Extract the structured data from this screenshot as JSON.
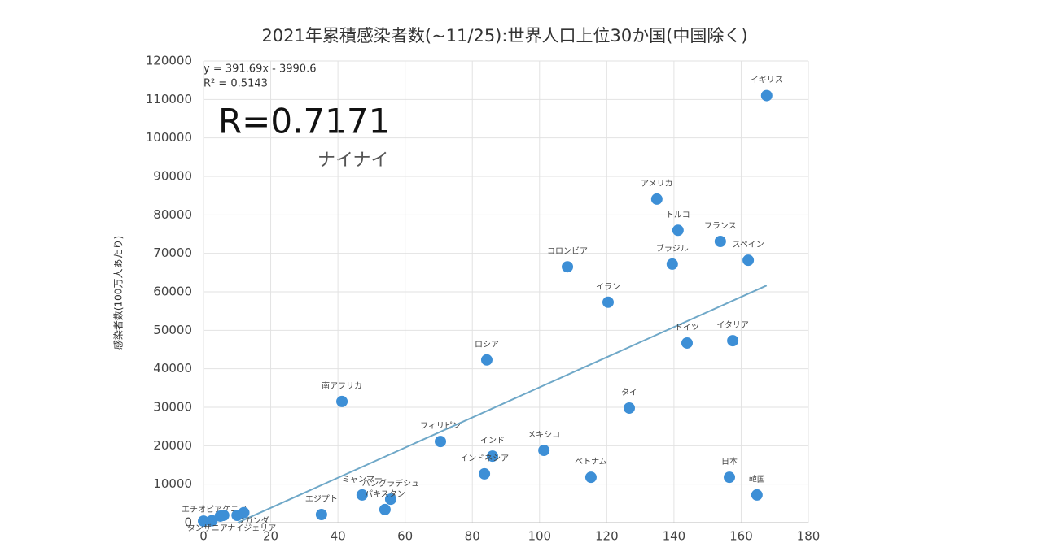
{
  "chart_data": {
    "type": "scatter",
    "title": "2021年累積感染者数(~11/25):世界人口上位30か国(中国除く)",
    "y_label": "感染者数(100万人あたり)",
    "annotations": [
      "R=0.7171",
      "ナイナイ"
    ],
    "trendline": {
      "equation": "y = 391.69x - 3990.6",
      "r2": "R² = 0.5143",
      "slope": 391.69,
      "intercept": -3990.6,
      "color": "#6fa8c8"
    },
    "color": "#3d8fd6",
    "labels": [
      "イギリス",
      "アメリカ",
      "トルコ",
      "フランス",
      "スペイン",
      "ブラジル",
      "コロンビア",
      "イラン",
      "ドイツ",
      "イタリア",
      "ロシア",
      "南アフリカ",
      "タイ",
      "フィリピン",
      "メキシコ",
      "インド",
      "インドネシア",
      "ベトナム",
      "日本",
      "韓国",
      "ミャンマー",
      "バングラデシュ",
      "パキスタン",
      "エジプト",
      "エチオピア",
      "ケニア",
      "ウガンダ",
      "タンザニア",
      "ナイジェリア",
      null
    ],
    "x": [
      167.6,
      134.9,
      141.2,
      153.8,
      162.1,
      139.5,
      108.3,
      120.4,
      143.9,
      157.5,
      84.3,
      41.2,
      126.7,
      70.5,
      101.3,
      86,
      83.6,
      115.3,
      156.5,
      164.7,
      47.2,
      55.7,
      54,
      35.1,
      0,
      2.5,
      5,
      6,
      10,
      12
    ],
    "y": [
      111000,
      84100,
      76000,
      73100,
      68200,
      67200,
      66500,
      57300,
      46700,
      47300,
      42300,
      31500,
      29800,
      21100,
      18800,
      17300,
      12700,
      11800,
      11800,
      7200,
      7200,
      6100,
      3400,
      2100,
      400,
      500,
      1700,
      1900,
      1900,
      2600
    ],
    "xlim": [
      0,
      180
    ],
    "xticks": [
      0,
      20,
      40,
      60,
      80,
      100,
      120,
      140,
      160,
      180
    ],
    "ylim": [
      0,
      120000
    ],
    "yticks": [
      0,
      10000,
      20000,
      30000,
      40000,
      50000,
      60000,
      70000,
      80000,
      90000,
      100000,
      110000,
      120000
    ],
    "grid": true
  }
}
